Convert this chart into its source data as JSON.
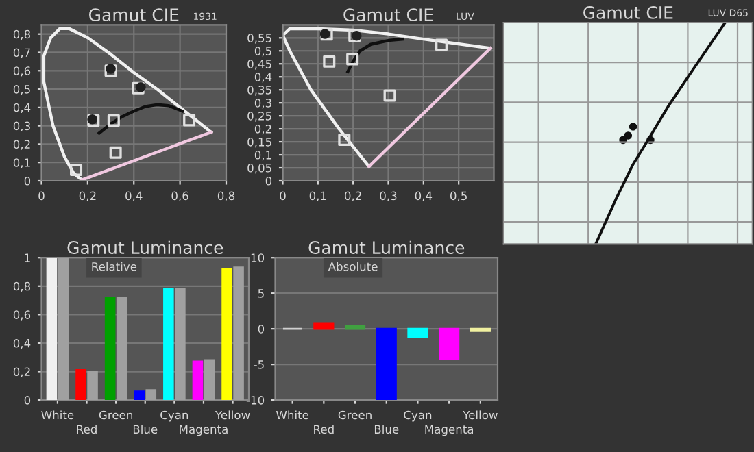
{
  "chart_data": [
    {
      "type": "scatter",
      "title": "Gamut CIE",
      "subtitle": "1931",
      "xlim": [
        0,
        0.8
      ],
      "ylim": [
        0,
        0.85
      ],
      "xticks": [
        {
          "value": 0,
          "label": "0"
        },
        {
          "value": 0.2,
          "label": "0,2"
        },
        {
          "value": 0.4,
          "label": "0,4"
        },
        {
          "value": 0.6,
          "label": "0,6"
        },
        {
          "value": 0.8,
          "label": "0,8"
        }
      ],
      "yticks": [
        {
          "value": 0,
          "label": "0"
        },
        {
          "value": 0.1,
          "label": "0,1"
        },
        {
          "value": 0.2,
          "label": "0,2"
        },
        {
          "value": 0.3,
          "label": "0,3"
        },
        {
          "value": 0.4,
          "label": "0,4"
        },
        {
          "value": 0.5,
          "label": "0,5"
        },
        {
          "value": 0.6,
          "label": "0,6"
        },
        {
          "value": 0.7,
          "label": "0,7"
        },
        {
          "value": 0.8,
          "label": "0,8"
        }
      ],
      "grid": true,
      "series": [
        {
          "type": "line",
          "color": "#f0f0f0",
          "x": [
            0.175,
            0.14,
            0.1,
            0.05,
            0.01,
            0.01,
            0.04,
            0.08,
            0.12,
            0.2,
            0.3,
            0.4,
            0.5,
            0.6,
            0.735
          ],
          "values": [
            0.005,
            0.04,
            0.13,
            0.3,
            0.54,
            0.68,
            0.78,
            0.83,
            0.83,
            0.78,
            0.69,
            0.59,
            0.5,
            0.4,
            0.265
          ]
        },
        {
          "type": "line",
          "color": "#f0c8e0",
          "x": [
            0.175,
            0.735
          ],
          "values": [
            0.005,
            0.265
          ]
        },
        {
          "type": "line",
          "color": "#101010",
          "x": [
            0.25,
            0.3,
            0.35,
            0.4,
            0.45,
            0.5,
            0.55,
            0.61
          ],
          "values": [
            0.26,
            0.31,
            0.35,
            0.38,
            0.405,
            0.415,
            0.41,
            0.38
          ]
        },
        {
          "type": "scatter",
          "marker": "square",
          "color": "#e0e0e0",
          "x": [
            0.64,
            0.3,
            0.15,
            0.3127,
            0.225,
            0.321,
            0.419
          ],
          "values": [
            0.33,
            0.6,
            0.06,
            0.329,
            0.329,
            0.154,
            0.505
          ]
        },
        {
          "type": "scatter",
          "marker": "circle",
          "color": "#202020",
          "x": [
            0.3,
            0.43,
            0.22
          ],
          "values": [
            0.61,
            0.51,
            0.335
          ]
        }
      ]
    },
    {
      "type": "scatter",
      "title": "Gamut CIE",
      "subtitle": "LUV",
      "xlim": [
        0,
        0.6
      ],
      "ylim": [
        0,
        0.6
      ],
      "xticks": [
        {
          "value": 0,
          "label": "0"
        },
        {
          "value": 0.1,
          "label": "0,1"
        },
        {
          "value": 0.2,
          "label": "0,2"
        },
        {
          "value": 0.3,
          "label": "0,3"
        },
        {
          "value": 0.4,
          "label": "0,4"
        },
        {
          "value": 0.5,
          "label": "0,5"
        }
      ],
      "yticks": [
        {
          "value": 0,
          "label": "0"
        },
        {
          "value": 0.05,
          "label": "0,05"
        },
        {
          "value": 0.1,
          "label": "0,1"
        },
        {
          "value": 0.15,
          "label": "0,15"
        },
        {
          "value": 0.2,
          "label": "0,2"
        },
        {
          "value": 0.25,
          "label": "0,25"
        },
        {
          "value": 0.3,
          "label": "0,3"
        },
        {
          "value": 0.35,
          "label": "0,35"
        },
        {
          "value": 0.4,
          "label": "0,4"
        },
        {
          "value": 0.45,
          "label": "0,45"
        },
        {
          "value": 0.5,
          "label": "0,5"
        },
        {
          "value": 0.55,
          "label": "0,55"
        }
      ],
      "grid": true,
      "series": [
        {
          "type": "line",
          "color": "#f0f0f0",
          "x": [
            0.245,
            0.16,
            0.08,
            0.02,
            0.0,
            0.02,
            0.1,
            0.2,
            0.3,
            0.4,
            0.59
          ],
          "values": [
            0.055,
            0.2,
            0.35,
            0.5,
            0.56,
            0.585,
            0.585,
            0.58,
            0.565,
            0.545,
            0.51
          ]
        },
        {
          "type": "line",
          "color": "#f0c8e0",
          "x": [
            0.245,
            0.59
          ],
          "values": [
            0.055,
            0.51
          ]
        },
        {
          "type": "line",
          "color": "#101010",
          "x": [
            0.185,
            0.2,
            0.22,
            0.25,
            0.3,
            0.34
          ],
          "values": [
            0.42,
            0.46,
            0.5,
            0.525,
            0.54,
            0.545
          ]
        },
        {
          "type": "scatter",
          "marker": "square",
          "color": "#e0e0e0",
          "x": [
            0.451,
            0.125,
            0.175,
            0.198,
            0.132,
            0.304,
            0.204
          ],
          "values": [
            0.523,
            0.563,
            0.158,
            0.468,
            0.459,
            0.328,
            0.558
          ]
        },
        {
          "type": "scatter",
          "marker": "circle",
          "color": "#202020",
          "x": [
            0.12,
            0.21
          ],
          "values": [
            0.565,
            0.558
          ]
        }
      ]
    },
    {
      "type": "other",
      "title": "Gamut CIE",
      "subtitle": "LUV D65"
    },
    {
      "type": "bar",
      "title": "Gamut Luminance",
      "annotations": [
        "Relative"
      ],
      "categories": [
        "White",
        "Red",
        "Green",
        "Blue",
        "Cyan",
        "Magenta",
        "Yellow"
      ],
      "ylim": [
        0,
        1
      ],
      "yticks": [
        {
          "value": 0,
          "label": "0"
        },
        {
          "value": 0.2,
          "label": "0,2"
        },
        {
          "value": 0.4,
          "label": "0,4"
        },
        {
          "value": 0.6,
          "label": "0,6"
        },
        {
          "value": 0.8,
          "label": "0,8"
        },
        {
          "value": 1,
          "label": "1"
        }
      ],
      "grid": "y",
      "series": [
        {
          "colors": [
            "#f0f0f0",
            "#ff0000",
            "#00a000",
            "#0000ff",
            "#00ffff",
            "#ff00ff",
            "#ffff00"
          ],
          "values": [
            1,
            0.21,
            0.72,
            0.06,
            0.78,
            0.27,
            0.92
          ]
        },
        {
          "color": "#a0a0a0",
          "values": [
            1,
            0.2,
            0.72,
            0.07,
            0.78,
            0.28,
            0.93
          ]
        }
      ]
    },
    {
      "type": "bar",
      "title": "Gamut Luminance",
      "annotations": [
        "Absolute"
      ],
      "categories": [
        "White",
        "Red",
        "Green",
        "Blue",
        "Cyan",
        "Magenta",
        "Yellow"
      ],
      "ylim": [
        -10,
        10
      ],
      "yticks": [
        -10,
        -5,
        0,
        5,
        10
      ],
      "grid": "y",
      "series": [
        {
          "colors": [
            "#d0d0d0",
            "#ff0000",
            "#40a040",
            "#0000ff",
            "#00ffff",
            "#ff00ff",
            "#f0f0a0"
          ],
          "values": [
            0,
            0.8,
            0.4,
            -10,
            -1.1,
            -4.2,
            -0.3
          ]
        }
      ]
    }
  ]
}
